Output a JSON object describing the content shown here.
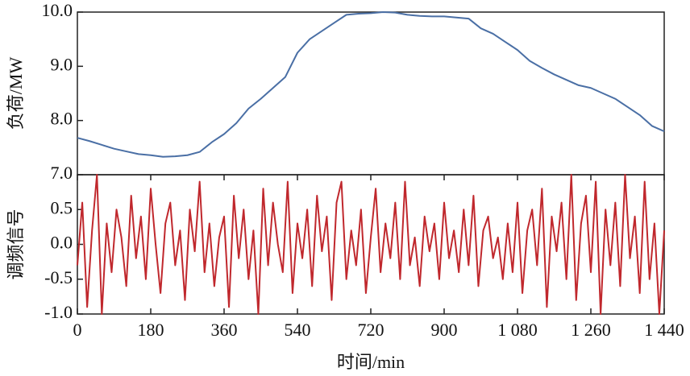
{
  "chart_data": [
    {
      "type": "line",
      "ylabel": "负荷/MW",
      "x": [
        0,
        30,
        60,
        90,
        120,
        150,
        180,
        210,
        240,
        270,
        300,
        330,
        360,
        390,
        420,
        450,
        480,
        510,
        540,
        570,
        600,
        630,
        660,
        690,
        720,
        750,
        780,
        810,
        840,
        870,
        900,
        930,
        960,
        990,
        1020,
        1050,
        1080,
        1110,
        1140,
        1170,
        1200,
        1230,
        1260,
        1290,
        1320,
        1350,
        1380,
        1410,
        1440
      ],
      "series": [
        {
          "color": "#4a6fa5",
          "values": [
            7.68,
            7.62,
            7.55,
            7.48,
            7.43,
            7.38,
            7.36,
            7.33,
            7.34,
            7.36,
            7.42,
            7.6,
            7.75,
            7.95,
            8.22,
            8.4,
            8.6,
            8.8,
            9.25,
            9.5,
            9.65,
            9.8,
            9.95,
            9.97,
            9.98,
            10.0,
            9.99,
            9.95,
            9.93,
            9.92,
            9.92,
            9.9,
            9.88,
            9.7,
            9.6,
            9.45,
            9.3,
            9.1,
            8.97,
            8.85,
            8.75,
            8.65,
            8.6,
            8.5,
            8.4,
            8.25,
            8.1,
            7.9,
            7.8
          ]
        }
      ],
      "xlim": [
        0,
        1440
      ],
      "ylim": [
        7,
        10
      ],
      "yticks": [
        {
          "value": 7,
          "label": "7.0"
        },
        {
          "value": 8,
          "label": "8.0"
        },
        {
          "value": 9,
          "label": "9.0"
        },
        {
          "value": 10,
          "label": "10.0"
        }
      ]
    },
    {
      "type": "line",
      "ylabel": "调频信号",
      "xlabel": "时间/min",
      "x": [
        0,
        12,
        24,
        36,
        48,
        60,
        72,
        84,
        96,
        108,
        120,
        132,
        144,
        156,
        168,
        180,
        192,
        204,
        216,
        228,
        240,
        252,
        264,
        276,
        288,
        300,
        312,
        324,
        336,
        348,
        360,
        372,
        384,
        396,
        408,
        420,
        432,
        444,
        456,
        468,
        480,
        492,
        504,
        516,
        528,
        540,
        552,
        564,
        576,
        588,
        600,
        612,
        624,
        636,
        648,
        660,
        672,
        684,
        696,
        708,
        720,
        732,
        744,
        756,
        768,
        780,
        792,
        804,
        816,
        828,
        840,
        852,
        864,
        876,
        888,
        900,
        912,
        924,
        936,
        948,
        960,
        972,
        984,
        996,
        1008,
        1020,
        1032,
        1044,
        1056,
        1068,
        1080,
        1092,
        1104,
        1116,
        1128,
        1140,
        1152,
        1164,
        1176,
        1188,
        1200,
        1212,
        1224,
        1236,
        1248,
        1260,
        1272,
        1284,
        1296,
        1308,
        1320,
        1332,
        1344,
        1356,
        1368,
        1380,
        1392,
        1404,
        1416,
        1428,
        1440
      ],
      "series": [
        {
          "color": "#c0282d",
          "values": [
            -0.3,
            0.6,
            -0.9,
            0.2,
            1.0,
            -1.0,
            0.3,
            -0.4,
            0.5,
            0.1,
            -0.6,
            0.7,
            -0.2,
            0.4,
            -0.5,
            0.8,
            0.0,
            -0.7,
            0.3,
            0.6,
            -0.3,
            0.2,
            -0.8,
            0.5,
            -0.1,
            0.9,
            -0.4,
            0.3,
            -0.6,
            0.1,
            0.4,
            -0.9,
            0.7,
            -0.2,
            0.5,
            -0.5,
            0.2,
            -1.0,
            0.8,
            -0.3,
            0.6,
            0.0,
            -0.4,
            0.9,
            -0.7,
            0.3,
            -0.2,
            0.5,
            -0.6,
            0.7,
            -0.1,
            0.4,
            -0.8,
            0.6,
            0.9,
            -0.5,
            0.2,
            -0.3,
            0.5,
            -0.7,
            0.1,
            0.8,
            -0.4,
            0.3,
            -0.2,
            0.6,
            -0.5,
            0.9,
            -0.3,
            0.1,
            -0.6,
            0.4,
            -0.1,
            0.3,
            -0.5,
            0.6,
            -0.2,
            0.2,
            -0.4,
            0.5,
            -0.3,
            0.7,
            -0.6,
            0.2,
            0.4,
            -0.2,
            0.1,
            -0.5,
            0.3,
            -0.4,
            0.6,
            -0.7,
            0.2,
            0.5,
            -0.3,
            0.8,
            -0.9,
            0.4,
            -0.1,
            0.6,
            -0.5,
            1.0,
            -0.8,
            0.3,
            0.7,
            -0.4,
            0.9,
            -1.0,
            0.5,
            -0.3,
            0.6,
            -0.6,
            1.0,
            -0.2,
            0.4,
            -0.7,
            0.9,
            -0.5,
            0.3,
            -1.0,
            0.2
          ]
        }
      ],
      "xlim": [
        0,
        1440
      ],
      "ylim": [
        -1,
        1
      ],
      "xticks": [
        0,
        180,
        360,
        540,
        720,
        900,
        {
          "value": 1080,
          "label": "1 080"
        },
        {
          "value": 1260,
          "label": "1 260"
        },
        {
          "value": 1440,
          "label": "1 440"
        }
      ],
      "yticks": [
        {
          "value": -1,
          "label": "-1.0"
        },
        -0.5,
        {
          "value": 0,
          "label": "0.0"
        },
        0.5
      ]
    }
  ]
}
